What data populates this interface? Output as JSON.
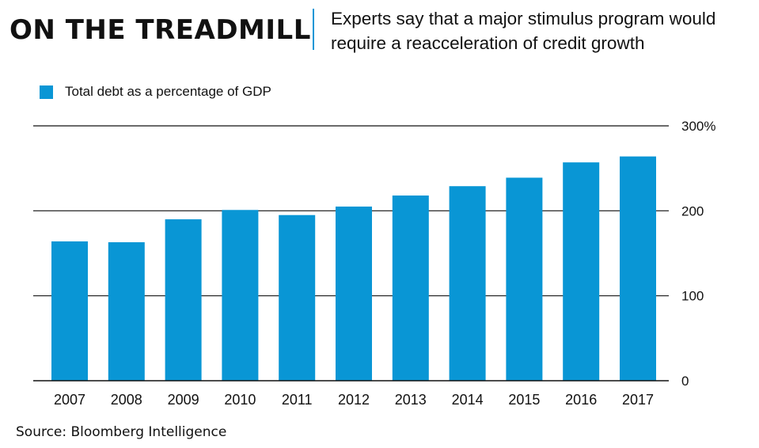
{
  "header": {
    "title": "ON THE TREADMILL",
    "subtitle": "Experts say that a major stimulus program would require a reacceleration of credit growth"
  },
  "source": "Source: Bloomberg Intelligence",
  "colors": {
    "bar": "#0996d5",
    "accent": "#0e96d6",
    "grid": "#111111"
  },
  "chart_data": {
    "type": "bar",
    "categories": [
      "2007",
      "2008",
      "2009",
      "2010",
      "2011",
      "2012",
      "2013",
      "2014",
      "2015",
      "2016",
      "2017"
    ],
    "series": [
      {
        "name": "Total debt as a percentage of GDP",
        "values": [
          164,
          163,
          190,
          201,
          195,
          205,
          218,
          229,
          239,
          257,
          264
        ]
      }
    ],
    "ylim": [
      0,
      300
    ],
    "yticks": [
      0,
      100,
      200,
      300
    ],
    "ytick_labels": [
      "0",
      "100",
      "200",
      "300%"
    ],
    "grid": true,
    "legend": "top-left",
    "y_axis_side": "right"
  }
}
